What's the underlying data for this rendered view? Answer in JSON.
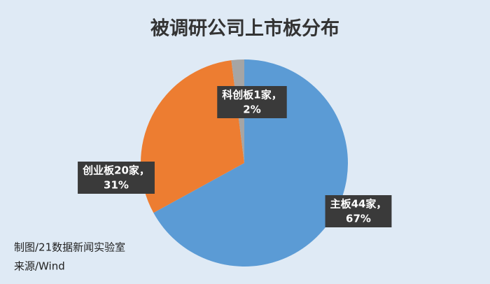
{
  "chart_data": {
    "type": "pie",
    "title": "被调研公司上市板分布",
    "categories": [
      "主板44家，",
      "创业板20家，",
      "科创板1家，"
    ],
    "values": [
      67,
      31,
      2
    ],
    "value_labels": [
      "67%",
      "31%",
      "2%"
    ],
    "colors": [
      "#5b9bd5",
      "#ed7d31",
      "#a5a5a5"
    ],
    "annotations": [
      "制图/21数据新闻实验室",
      "来源/Wind"
    ]
  }
}
